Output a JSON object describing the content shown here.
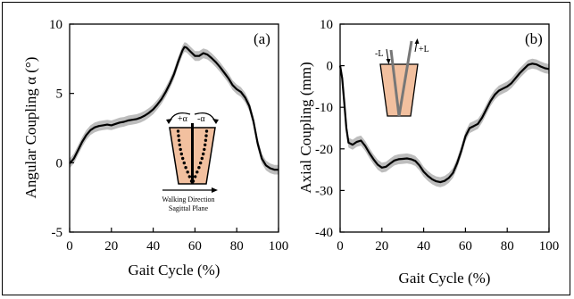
{
  "colors": {
    "line": "#000000",
    "band": "#bdbdbd",
    "shank": "#f2c09f",
    "frame": "#000000"
  },
  "chart_data": [
    {
      "type": "line",
      "panel_label": "(a)",
      "xlabel": "Gait Cycle (%)",
      "ylabel": "Angular Coupling α (°)",
      "xlim": [
        0,
        100
      ],
      "ylim": [
        -5,
        10
      ],
      "xticks": [
        "0",
        "20",
        "40",
        "60",
        "80",
        "100"
      ],
      "yticks": [
        "-5",
        "0",
        "5",
        "10"
      ],
      "grid": false,
      "series": [
        {
          "x": [
            0,
            2,
            4,
            6,
            8,
            10,
            12,
            14,
            16,
            18,
            20,
            22,
            24,
            26,
            28,
            30,
            32,
            34,
            36,
            38,
            40,
            42,
            44,
            46,
            48,
            50,
            52,
            54,
            55,
            56,
            58,
            60,
            62,
            64,
            66,
            68,
            70,
            72,
            74,
            76,
            78,
            80,
            82,
            84,
            86,
            88,
            90,
            92,
            94,
            96,
            98,
            100
          ],
          "y": [
            -0.05,
            0.3,
            0.9,
            1.5,
            2.0,
            2.35,
            2.55,
            2.65,
            2.7,
            2.75,
            2.7,
            2.8,
            2.9,
            2.95,
            3.05,
            3.1,
            3.15,
            3.25,
            3.4,
            3.6,
            3.85,
            4.2,
            4.6,
            5.1,
            5.7,
            6.4,
            7.3,
            8.1,
            8.35,
            8.3,
            8.0,
            7.7,
            7.7,
            7.9,
            7.8,
            7.55,
            7.25,
            6.9,
            6.5,
            6.1,
            5.6,
            5.3,
            5.1,
            4.7,
            4.1,
            3.0,
            1.4,
            0.3,
            -0.2,
            -0.4,
            -0.5,
            -0.5
          ]
        }
      ],
      "inset": {
        "plus_label": "+α",
        "minus_label": "-α",
        "direction_label": "Walking Direction",
        "plane_label": "Sagittal Plane"
      }
    },
    {
      "type": "line",
      "panel_label": "(b)",
      "xlabel": "Gait Cycle (%)",
      "ylabel": "Axial Coupling (mm)",
      "xlim": [
        0,
        100
      ],
      "ylim": [
        -40,
        10
      ],
      "xticks": [
        "0",
        "20",
        "40",
        "60",
        "80",
        "100"
      ],
      "yticks": [
        "-40",
        "-30",
        "-20",
        "-10",
        "0",
        "10"
      ],
      "grid": false,
      "series": [
        {
          "x": [
            0,
            1,
            2,
            3,
            4,
            6,
            8,
            10,
            12,
            14,
            16,
            18,
            20,
            22,
            24,
            26,
            28,
            30,
            32,
            34,
            36,
            38,
            40,
            42,
            44,
            46,
            48,
            50,
            52,
            54,
            56,
            58,
            60,
            62,
            64,
            66,
            68,
            70,
            72,
            74,
            76,
            78,
            80,
            82,
            84,
            86,
            88,
            90,
            92,
            94,
            96,
            98,
            100
          ],
          "y": [
            0,
            -3,
            -9,
            -15,
            -18.5,
            -19.0,
            -18.3,
            -18.0,
            -19.3,
            -21.0,
            -22.5,
            -23.8,
            -24.5,
            -24.3,
            -23.5,
            -22.8,
            -22.5,
            -22.4,
            -22.3,
            -22.5,
            -22.9,
            -24.0,
            -25.5,
            -26.5,
            -27.3,
            -27.8,
            -28.0,
            -27.7,
            -27.0,
            -25.8,
            -23.5,
            -20.5,
            -17.0,
            -15.0,
            -14.5,
            -14.0,
            -12.5,
            -10.5,
            -8.5,
            -7.0,
            -6.0,
            -5.5,
            -5.0,
            -4.2,
            -3.0,
            -1.8,
            -0.8,
            0.2,
            0.5,
            0.3,
            -0.2,
            -0.6,
            -0.8
          ]
        }
      ],
      "inset": {
        "minus_label": "-L",
        "plus_label": "+L"
      }
    }
  ]
}
